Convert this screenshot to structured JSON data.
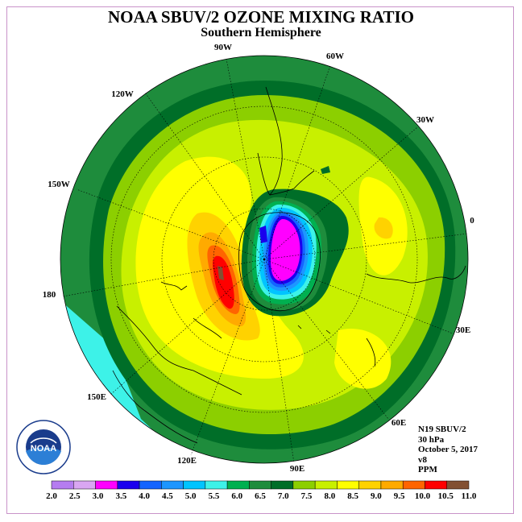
{
  "title": "NOAA SBUV/2 OZONE MIXING RATIO",
  "subtitle": "Southern Hemisphere",
  "info": {
    "satellite": "N19 SBUV/2",
    "level": "30 hPa",
    "date": "October 5, 2017",
    "version": "v8",
    "units": "PPM"
  },
  "longitude_labels": [
    "90W",
    "60W",
    "120W",
    "30W",
    "150W",
    "0",
    "180",
    "30E",
    "150E",
    "60E",
    "120E",
    "90E"
  ],
  "logo": {
    "text": "NOAA"
  },
  "colorbar": {
    "ticks": [
      "2.0",
      "2.5",
      "3.0",
      "3.5",
      "4.0",
      "4.5",
      "5.0",
      "5.5",
      "6.0",
      "6.5",
      "7.0",
      "7.5",
      "8.0",
      "8.5",
      "9.0",
      "9.5",
      "10.0",
      "10.5",
      "11.0"
    ],
    "colors": [
      "#b57cf0",
      "#d9a6f2",
      "#ff00ff",
      "#1a00ee",
      "#1464ff",
      "#1e96ff",
      "#00c4ff",
      "#3df2e8",
      "#00b050",
      "#1e8c3c",
      "#006e28",
      "#8ccf00",
      "#c8f000",
      "#ffff00",
      "#ffd200",
      "#ffaa00",
      "#ff6400",
      "#ff0000",
      "#825032"
    ]
  },
  "palette": {
    "frame": "#c993c9",
    "coast": "#000000"
  }
}
